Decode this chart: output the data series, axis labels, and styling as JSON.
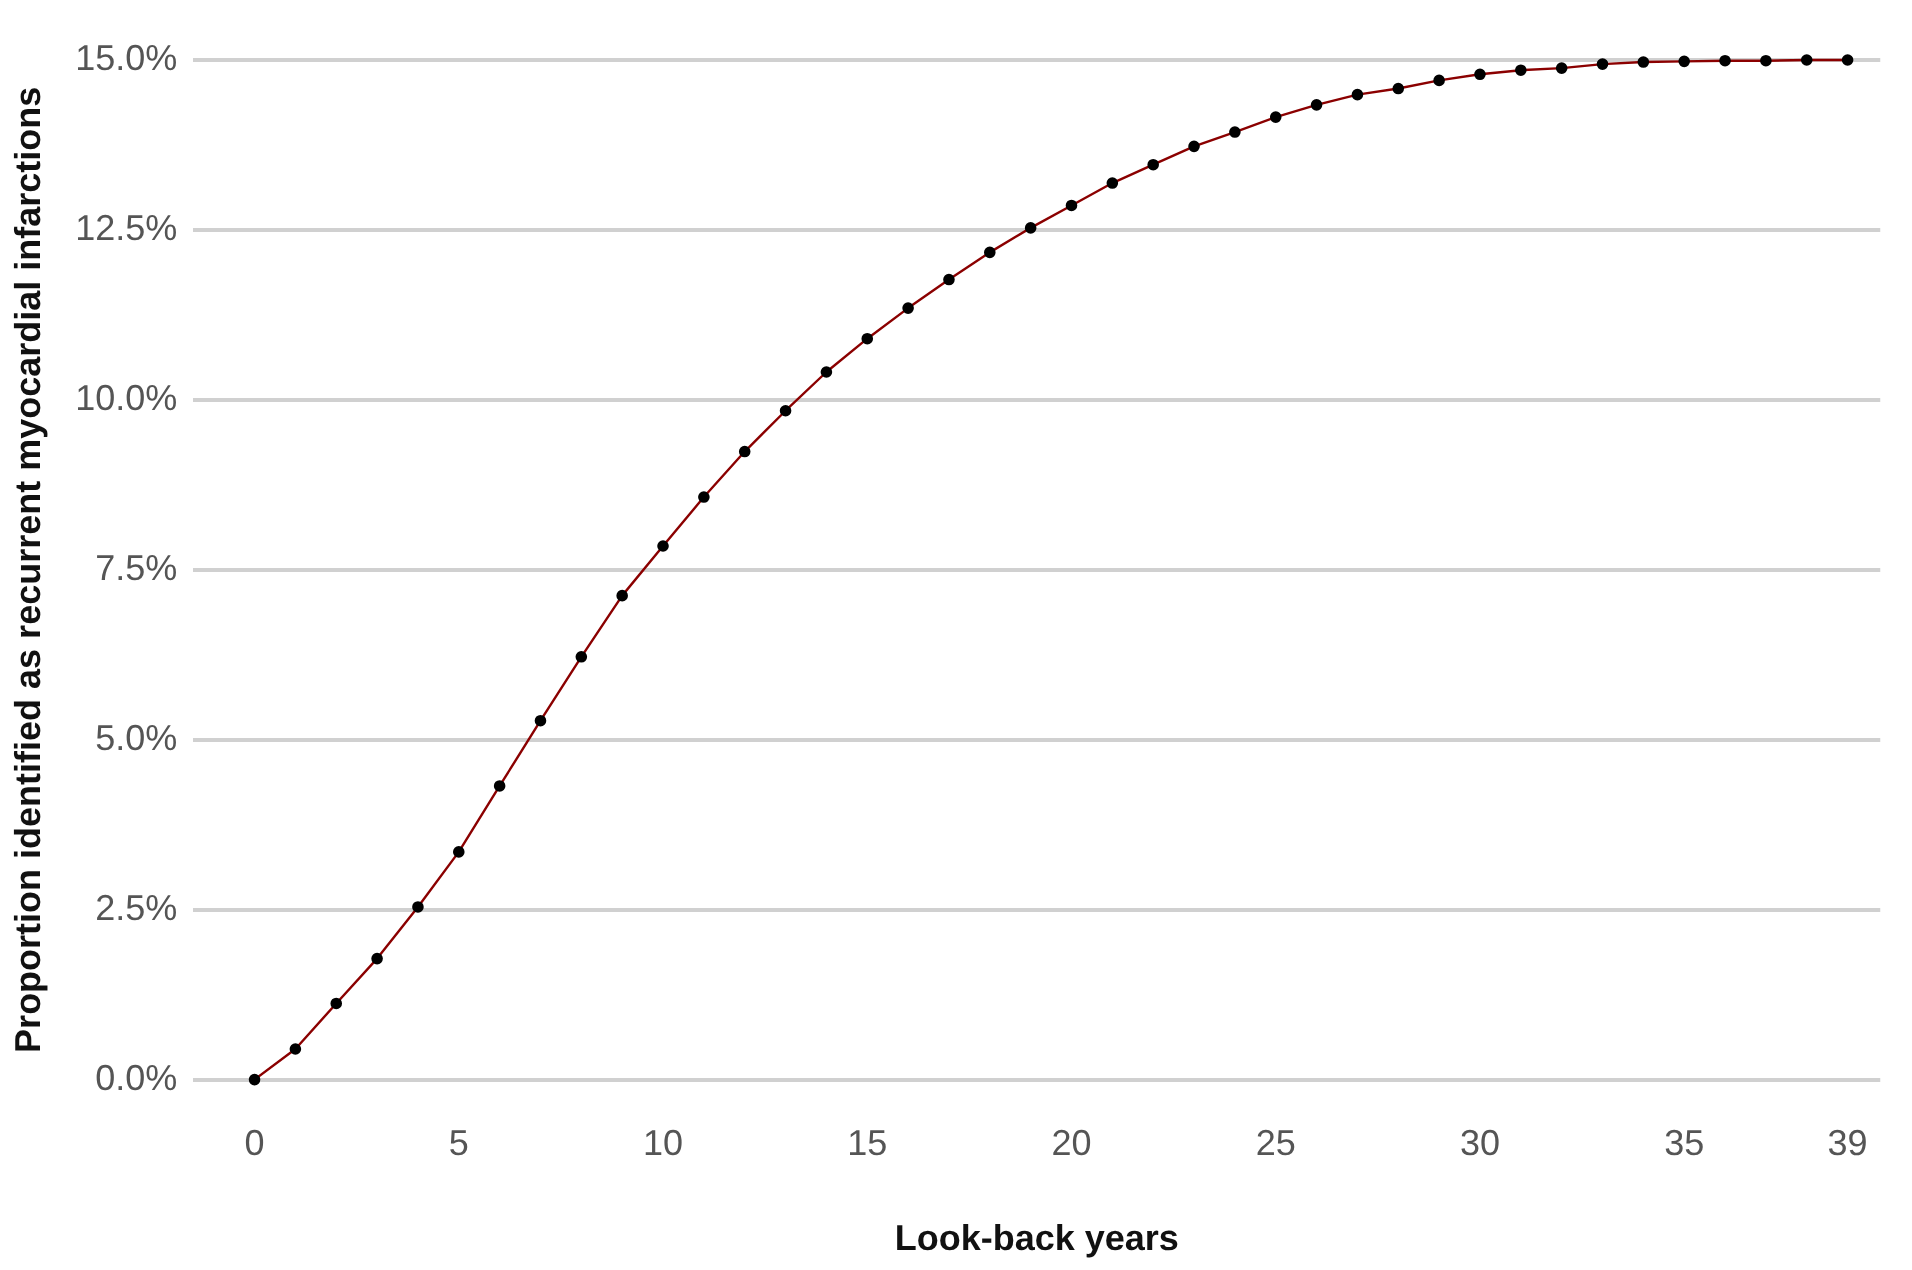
{
  "chart_data": {
    "type": "line",
    "xlabel": "Look-back years",
    "ylabel": "Proportion identified as recurrent myocardial infarctions",
    "x": [
      0,
      1,
      2,
      3,
      4,
      5,
      6,
      7,
      8,
      9,
      10,
      11,
      12,
      13,
      14,
      15,
      16,
      17,
      18,
      19,
      20,
      21,
      22,
      23,
      24,
      25,
      26,
      27,
      28,
      29,
      30,
      31,
      32,
      33,
      34,
      35,
      36,
      37,
      38,
      39
    ],
    "series": [
      {
        "color": "#8b0000",
        "values": [
          0,
          0.45,
          1.12,
          1.78,
          2.54,
          3.35,
          4.32,
          5.28,
          6.22,
          7.12,
          7.85,
          8.57,
          9.24,
          9.84,
          10.41,
          10.9,
          11.35,
          11.77,
          12.17,
          12.53,
          12.86,
          13.19,
          13.46,
          13.73,
          13.94,
          14.16,
          14.34,
          14.49,
          14.58,
          14.7,
          14.79,
          14.85,
          14.88,
          14.94,
          14.97,
          14.98,
          14.99,
          14.99,
          15.0,
          15.0
        ]
      }
    ],
    "xlim": [
      -1.5,
      39.8
    ],
    "xticks": [
      0,
      5,
      10,
      15,
      20,
      25,
      30,
      35,
      39
    ],
    "ylim": [
      0,
      15
    ],
    "yticks": [
      {
        "value": 0,
        "label": "0.0%"
      },
      {
        "value": 2.5,
        "label": "2.5%"
      },
      {
        "value": 5,
        "label": "5.0%"
      },
      {
        "value": 7.5,
        "label": "7.5%"
      },
      {
        "value": 10,
        "label": "10.0%"
      },
      {
        "value": 12.5,
        "label": "12.5%"
      },
      {
        "value": 15,
        "label": "15.0%"
      }
    ],
    "grid": "y",
    "marker": "circle",
    "line_style": "solid",
    "legend": false
  }
}
